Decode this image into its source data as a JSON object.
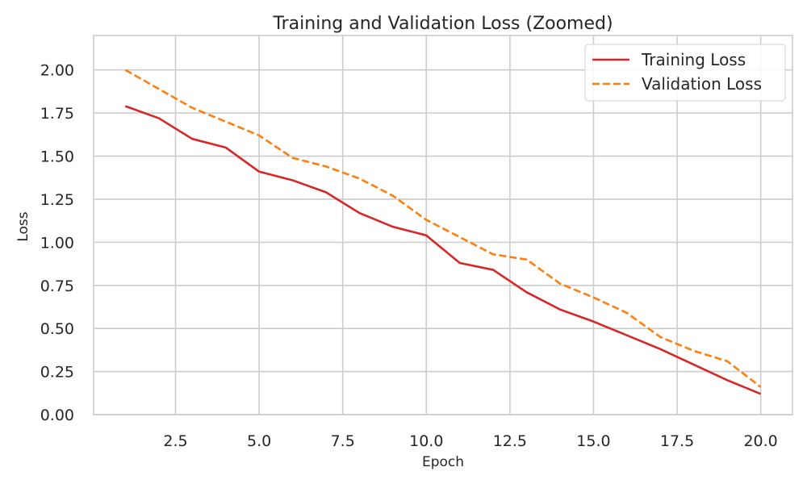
{
  "chart_data": {
    "type": "line",
    "title": "Training and Validation Loss (Zoomed)",
    "xlabel": "Epoch",
    "ylabel": "Loss",
    "xlim": [
      0.05,
      20.95
    ],
    "ylim": [
      0,
      2.2
    ],
    "grid": true,
    "legend_position": "top-right",
    "x_ticks": [
      2.5,
      5.0,
      7.5,
      10.0,
      12.5,
      15.0,
      17.5,
      20.0
    ],
    "x_tick_labels": [
      "2.5",
      "5.0",
      "7.5",
      "10.0",
      "12.5",
      "15.0",
      "17.5",
      "20.0"
    ],
    "y_ticks": [
      0,
      0.25,
      0.5,
      0.75,
      1.0,
      1.25,
      1.5,
      1.75,
      2.0
    ],
    "y_tick_labels": [
      "0.00",
      "0.25",
      "0.50",
      "0.75",
      "1.00",
      "1.25",
      "1.50",
      "1.75",
      "2.00"
    ],
    "x": [
      1,
      2,
      3,
      4,
      5,
      6,
      7,
      8,
      9,
      10,
      11,
      12,
      13,
      14,
      15,
      16,
      17,
      18,
      19,
      20
    ],
    "series": [
      {
        "name": "Training Loss",
        "color": "#d62728",
        "dash": "solid",
        "values": [
          1.79,
          1.72,
          1.6,
          1.55,
          1.41,
          1.36,
          1.29,
          1.17,
          1.09,
          1.04,
          0.88,
          0.84,
          0.71,
          0.61,
          0.54,
          0.46,
          0.38,
          0.29,
          0.2,
          0.12
        ]
      },
      {
        "name": "Validation Loss",
        "color": "#ff7f0e",
        "dash": "dashed",
        "values": [
          2.0,
          1.89,
          1.78,
          1.7,
          1.62,
          1.49,
          1.44,
          1.37,
          1.27,
          1.13,
          1.03,
          0.93,
          0.9,
          0.76,
          0.68,
          0.59,
          0.45,
          0.37,
          0.31,
          0.16
        ]
      }
    ]
  }
}
